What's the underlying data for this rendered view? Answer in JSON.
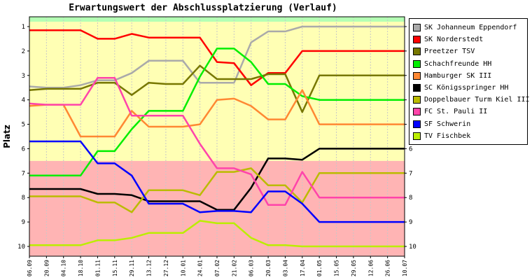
{
  "chart_data": {
    "type": "line",
    "title": "Erwartungswert der Abschlussplatzierung (Verlauf)",
    "xlabel": "",
    "ylabel": "Platz",
    "ylim": [
      10.4,
      0.6
    ],
    "y_ticks": [
      1,
      2,
      3,
      4,
      5,
      6,
      7,
      8,
      9,
      10
    ],
    "y_axis_reversed": true,
    "legend_position": "right",
    "x": [
      "06.09",
      "20.09",
      "04.10",
      "18.10",
      "01.11",
      "15.11",
      "29.11",
      "13.12",
      "27.12",
      "10.01",
      "24.01",
      "07.02",
      "21.02",
      "06.03",
      "20.03",
      "03.04",
      "17.04",
      "01.05",
      "15.05",
      "29.05",
      "12.06",
      "26.06",
      "10.07"
    ],
    "background_bands": [
      {
        "from": 0.6,
        "to": 0.8,
        "color": "#b4ffb4"
      },
      {
        "from": 0.8,
        "to": 6.5,
        "color": "#ffffb4"
      },
      {
        "from": 6.5,
        "to": 10.4,
        "color": "#ffb4b4"
      }
    ],
    "series": [
      {
        "name": "SK Johanneum Eppendorf",
        "color": "#aaaaaa",
        "values": [
          3.45,
          3.5,
          3.5,
          3.4,
          3.2,
          3.2,
          2.9,
          2.4,
          2.4,
          2.4,
          3.3,
          3.3,
          3.3,
          1.65,
          1.2,
          1.2,
          1.0,
          1.0,
          1.0,
          1.0,
          1.0,
          1.0,
          1.0
        ]
      },
      {
        "name": "SK Norderstedt",
        "color": "#ff0000",
        "values": [
          1.15,
          1.15,
          1.15,
          1.15,
          1.5,
          1.5,
          1.3,
          1.45,
          1.45,
          1.45,
          1.45,
          2.45,
          2.5,
          3.4,
          2.9,
          2.9,
          2.0,
          2.0,
          2.0,
          2.0,
          2.0,
          2.0,
          2.0
        ]
      },
      {
        "name": "Preetzer TSV",
        "color": "#777700",
        "values": [
          3.6,
          3.55,
          3.55,
          3.55,
          3.3,
          3.3,
          3.8,
          3.3,
          3.35,
          3.35,
          2.6,
          3.15,
          3.15,
          3.15,
          2.95,
          2.95,
          4.5,
          3.0,
          3.0,
          3.0,
          3.0,
          3.0,
          3.0
        ]
      },
      {
        "name": "Schachfreunde HH",
        "color": "#00ee00",
        "values": [
          7.1,
          7.1,
          7.1,
          7.1,
          6.1,
          6.1,
          5.2,
          4.45,
          4.45,
          4.45,
          3.05,
          1.9,
          1.9,
          2.45,
          3.35,
          3.35,
          3.85,
          4.0,
          4.0,
          4.0,
          4.0,
          4.0,
          4.0
        ]
      },
      {
        "name": "Hamburger SK III",
        "color": "#ff8833",
        "values": [
          4.25,
          4.2,
          4.2,
          5.5,
          5.5,
          5.5,
          4.45,
          5.1,
          5.1,
          5.1,
          5.0,
          4.0,
          3.95,
          4.25,
          4.8,
          4.8,
          3.6,
          5.0,
          5.0,
          5.0,
          5.0,
          5.0,
          5.0
        ]
      },
      {
        "name": "SC Königsspringer HH",
        "color": "#000000",
        "values": [
          7.65,
          7.65,
          7.65,
          7.65,
          7.85,
          7.85,
          7.9,
          8.15,
          8.15,
          8.15,
          8.15,
          8.5,
          8.5,
          7.6,
          6.4,
          6.4,
          6.45,
          6.0,
          6.0,
          6.0,
          6.0,
          6.0,
          6.0
        ]
      },
      {
        "name": "Doppelbauer Turm Kiel III",
        "color": "#bbbb00",
        "values": [
          7.95,
          7.95,
          7.95,
          7.95,
          8.2,
          8.2,
          8.6,
          7.7,
          7.7,
          7.7,
          7.9,
          6.95,
          6.95,
          6.8,
          7.5,
          7.5,
          8.2,
          7.0,
          7.0,
          7.0,
          7.0,
          7.0,
          7.0
        ]
      },
      {
        "name": "FC St. Pauli II",
        "color": "#ff44aa",
        "values": [
          4.15,
          4.2,
          4.2,
          4.2,
          3.1,
          3.1,
          4.65,
          4.65,
          4.65,
          4.65,
          5.8,
          6.8,
          6.8,
          7.05,
          8.3,
          8.3,
          6.95,
          8.0,
          8.0,
          8.0,
          8.0,
          8.0,
          8.0
        ]
      },
      {
        "name": "SF Schwerin",
        "color": "#0000ff",
        "values": [
          5.7,
          5.7,
          5.7,
          5.7,
          6.6,
          6.6,
          7.1,
          8.25,
          8.25,
          8.25,
          8.6,
          8.55,
          8.55,
          8.6,
          7.75,
          7.75,
          8.25,
          9.0,
          9.0,
          9.0,
          9.0,
          9.0,
          9.0
        ]
      },
      {
        "name": "TV Fischbek",
        "color": "#bbee00",
        "values": [
          9.95,
          9.95,
          9.95,
          9.95,
          9.75,
          9.75,
          9.65,
          9.45,
          9.45,
          9.45,
          8.95,
          9.05,
          9.05,
          9.65,
          9.95,
          9.95,
          10.0,
          10.0,
          10.0,
          10.0,
          10.0,
          10.0,
          10.0
        ]
      }
    ]
  }
}
